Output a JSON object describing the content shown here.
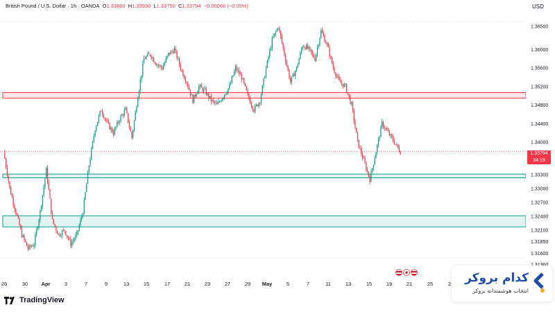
{
  "legend": {
    "symbol": "British Pound / U.S. Dollar · 1h · OANDA",
    "open_label": "O",
    "open": "1.33860",
    "high_label": "H",
    "high": "1.33930",
    "low_label": "L",
    "low": "1.33750",
    "close_label": "C",
    "close": "1.33794",
    "change": "−0.00066 (−0.05%)"
  },
  "currency": "USD",
  "last_price": {
    "price": "1.33794",
    "countdown": "34:19"
  },
  "platform": "TradingView",
  "brand": {
    "name": "کدام بروکر",
    "tagline": "انتخاب هوشمندانه بروکر"
  },
  "colors": {
    "up": "#089981",
    "down": "#f23645",
    "resistance": "#f23645",
    "support": "#089981"
  },
  "chart_data": {
    "type": "candlestick",
    "title": "British Pound / U.S. Dollar · 1h · OANDA",
    "ylim": [
      1.312,
      1.368
    ],
    "y_ticks": [
      "1.36500",
      "1.36000",
      "1.35600",
      "1.35200",
      "1.34800",
      "1.34400",
      "1.34000",
      "1.33600",
      "1.33300",
      "1.33000",
      "1.32700",
      "1.32400",
      "1.32100",
      "1.31850",
      "1.31600",
      "1.31360"
    ],
    "x_ticks": [
      "26",
      "30",
      "Apr",
      "3",
      "7",
      "9",
      "13",
      "15",
      "17",
      "21",
      "23",
      "27",
      "29",
      "May",
      "5",
      "7",
      "11",
      "13",
      "15",
      "19",
      "21",
      "25",
      "2"
    ],
    "series": [
      {
        "name": "price",
        "x_range": [
          "26",
          "19"
        ],
        "values": [
          1.338,
          1.33,
          1.325,
          1.32,
          1.317,
          1.318,
          1.325,
          1.334,
          1.323,
          1.32,
          1.321,
          1.318,
          1.32,
          1.325,
          1.335,
          1.343,
          1.347,
          1.344,
          1.342,
          1.345,
          1.347,
          1.341,
          1.35,
          1.358,
          1.359,
          1.357,
          1.356,
          1.359,
          1.36,
          1.356,
          1.353,
          1.349,
          1.352,
          1.351,
          1.349,
          1.348,
          1.35,
          1.352,
          1.356,
          1.354,
          1.35,
          1.347,
          1.349,
          1.356,
          1.362,
          1.365,
          1.359,
          1.353,
          1.356,
          1.361,
          1.36,
          1.358,
          1.364,
          1.361,
          1.356,
          1.353,
          1.352,
          1.348,
          1.34,
          1.336,
          1.332,
          1.338,
          1.344,
          1.342,
          1.34,
          1.3379
        ]
      }
    ],
    "zones": [
      {
        "kind": "resistance",
        "from": 1.3495,
        "to": 1.3507
      },
      {
        "kind": "support",
        "from": 1.3323,
        "to": 1.3331
      },
      {
        "kind": "support",
        "from": 1.3217,
        "to": 1.3241
      }
    ],
    "last": 1.33794,
    "grid": false
  }
}
